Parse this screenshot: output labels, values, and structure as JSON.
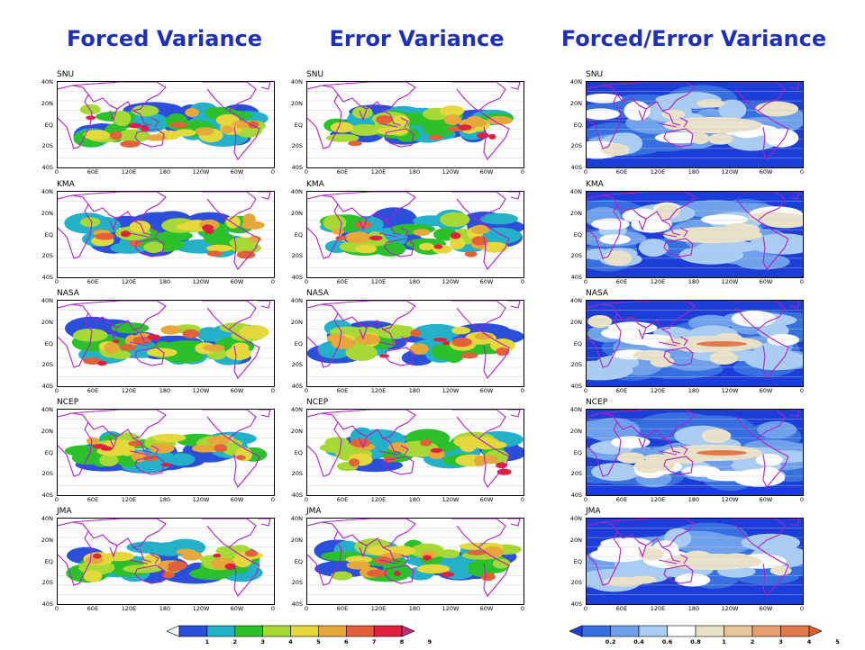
{
  "titles": [
    {
      "id": "forced",
      "text": "Forced Variance"
    },
    {
      "id": "error",
      "text": "Error Variance"
    },
    {
      "id": "ratio",
      "text": "Forced/Error Variance"
    }
  ],
  "models": [
    "SNU",
    "KMA",
    "NASA",
    "NCEP",
    "JMA"
  ],
  "lat_ticks": [
    "40N",
    "20N",
    "EQ",
    "20S",
    "40S"
  ],
  "lon_ticks": [
    "0",
    "60E",
    "120E",
    "180",
    "120W",
    "60W",
    "0"
  ],
  "variance_colorbar": {
    "colors": [
      "#ffffff",
      "#2b4fd8",
      "#23b0c8",
      "#2cc02c",
      "#a6d836",
      "#e4d83c",
      "#e6a83a",
      "#e2613a",
      "#e0203c",
      "#c8287a"
    ],
    "labels": [
      "1",
      "2",
      "3",
      "4",
      "5",
      "6",
      "7",
      "8",
      "9"
    ]
  },
  "ratio_colorbar": {
    "colors": [
      "#1c3ed8",
      "#3670e0",
      "#6ea0ec",
      "#a8ccf2",
      "#ffffff",
      "#eae2c8",
      "#e6c69a",
      "#e6a070",
      "#e2794a",
      "#e05d2a"
    ],
    "labels": [
      "0.2",
      "0.4",
      "0.6",
      "0.8",
      "1",
      "2",
      "3",
      "4",
      "5"
    ]
  },
  "coastline_color": "#b020c8",
  "title_color": "#1f2fb8"
}
